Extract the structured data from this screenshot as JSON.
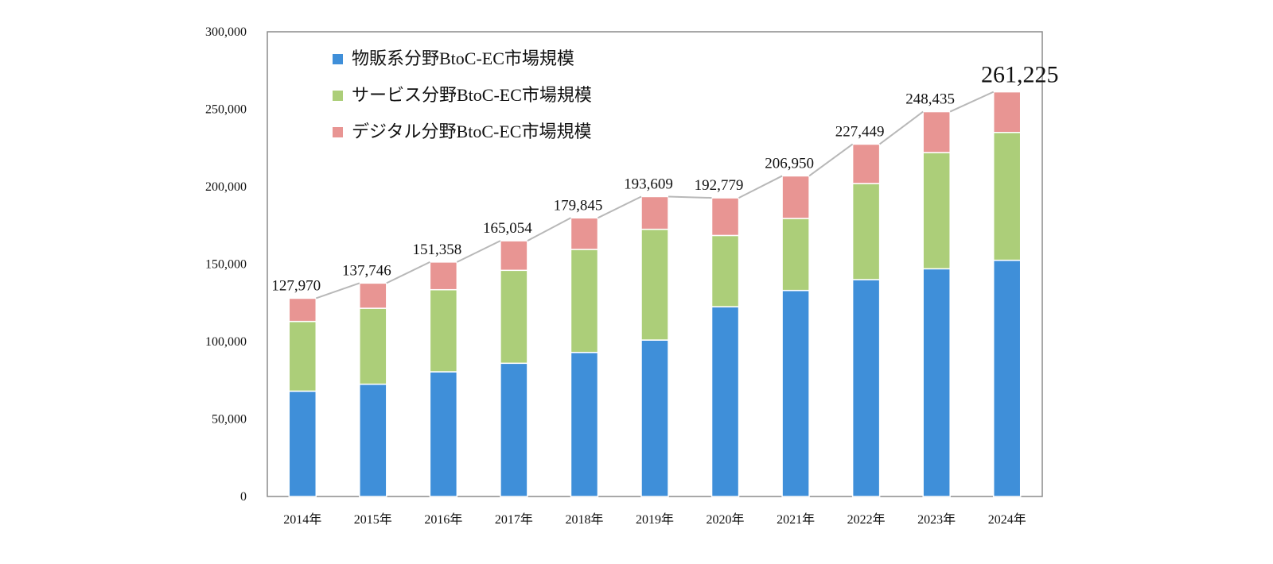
{
  "chart_data": {
    "type": "bar",
    "stacked": true,
    "categories": [
      "2014年",
      "2015年",
      "2016年",
      "2017年",
      "2018年",
      "2019年",
      "2020年",
      "2021年",
      "2022年",
      "2023年",
      "2024年"
    ],
    "series": [
      {
        "name": "物販系分野BtoC-EC市場規模",
        "color": "#3f8fd9",
        "values": [
          68000,
          72500,
          80500,
          86000,
          93000,
          101000,
          122500,
          133000,
          140000,
          147000,
          152500
        ]
      },
      {
        "name": "サービス分野BtoC-EC市場規模",
        "color": "#acce79",
        "values": [
          45000,
          49000,
          53000,
          60000,
          66500,
          71500,
          46000,
          46500,
          62000,
          75000,
          82500
        ]
      },
      {
        "name": "デジタル分野BtoC-EC市場規模",
        "color": "#e89593",
        "values": [
          14970,
          16246,
          17858,
          19054,
          20345,
          21109,
          24279,
          27450,
          25449,
          26435,
          26225
        ]
      }
    ],
    "totals": [
      127970,
      137746,
      151358,
      165054,
      179845,
      193609,
      192779,
      206950,
      227449,
      248435,
      261225
    ],
    "total_labels": [
      "127,970",
      "137,746",
      "151,358",
      "165,054",
      "179,845",
      "193,609",
      "192,779",
      "206,950",
      "227,449",
      "248,435",
      "261,225"
    ],
    "ylim": [
      0,
      300000
    ],
    "yticks": [
      0,
      50000,
      100000,
      150000,
      200000,
      250000,
      300000
    ],
    "ytick_labels": [
      "0",
      "50,000",
      "100,000",
      "150,000",
      "200,000",
      "250,000",
      "300,000"
    ],
    "total_line_color": "#b8b8b8",
    "grid": false,
    "legend_position": "top-left",
    "title": "",
    "xlabel": "",
    "ylabel": ""
  }
}
